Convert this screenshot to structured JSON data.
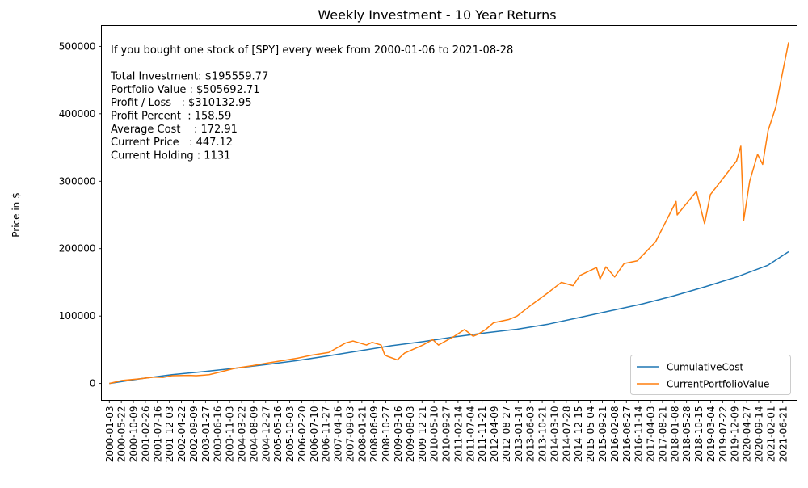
{
  "chart_data": {
    "type": "line",
    "title": "Weekly Investment - 10 Year Returns",
    "xlabel": "",
    "ylabel": "Price in $",
    "ylim": [
      -25000,
      531000
    ],
    "yticks": [
      0,
      100000,
      200000,
      300000,
      400000,
      500000
    ],
    "xlim": [
      "1999-10-03",
      "2021-12-05"
    ],
    "xticks": [
      "2000-01-03",
      "2000-05-22",
      "2000-10-09",
      "2001-02-26",
      "2001-07-16",
      "2001-12-03",
      "2002-04-22",
      "2002-09-09",
      "2003-01-27",
      "2003-06-16",
      "2003-11-03",
      "2004-03-22",
      "2004-08-09",
      "2004-12-27",
      "2005-05-16",
      "2005-10-03",
      "2006-02-20",
      "2006-07-10",
      "2006-11-27",
      "2007-04-16",
      "2007-09-03",
      "2008-01-21",
      "2008-06-09",
      "2008-10-27",
      "2009-03-16",
      "2009-08-03",
      "2009-12-21",
      "2010-05-10",
      "2010-09-27",
      "2011-02-14",
      "2011-07-04",
      "2011-11-21",
      "2012-04-09",
      "2012-08-27",
      "2013-01-14",
      "2013-06-03",
      "2013-10-21",
      "2014-03-10",
      "2014-07-28",
      "2014-12-15",
      "2015-05-04",
      "2015-09-21",
      "2016-02-08",
      "2016-06-27",
      "2016-11-14",
      "2017-04-03",
      "2017-08-21",
      "2018-01-08",
      "2018-05-28",
      "2018-10-15",
      "2019-03-04",
      "2019-07-22",
      "2019-12-09",
      "2020-04-27",
      "2020-09-14",
      "2021-02-01",
      "2021-06-21"
    ],
    "grid": false,
    "legend_position": "bottom-right",
    "annotation": [
      "If you bought one stock of [SPY] every week from 2000-01-06 to 2021-08-28",
      "",
      "Total Investment: $195559.77",
      "Portfolio Value : $505692.71",
      "Profit / Loss   : $310132.95",
      "Profit Percent  : 158.59",
      "Average Cost    : 172.91",
      "Current Price   : 447.12",
      "Current Holding : 1131"
    ],
    "series": [
      {
        "name": "CumulativeCost",
        "color": "#1f77b4",
        "x": [
          "2000-01-03",
          "2001-01-01",
          "2002-01-01",
          "2003-01-01",
          "2004-01-01",
          "2005-01-01",
          "2006-01-01",
          "2007-01-01",
          "2008-01-01",
          "2009-01-01",
          "2010-01-01",
          "2011-01-01",
          "2012-01-01",
          "2013-01-01",
          "2014-01-01",
          "2015-01-01",
          "2016-01-01",
          "2017-01-01",
          "2018-01-01",
          "2019-01-01",
          "2020-01-01",
          "2021-01-01",
          "2021-08-28"
        ],
        "values": [
          0,
          7000,
          13000,
          17500,
          22500,
          28000,
          34000,
          41000,
          48500,
          56000,
          62000,
          69000,
          75000,
          80500,
          88000,
          98000,
          108000,
          118000,
          130000,
          143500,
          158000,
          175500,
          195560
        ]
      },
      {
        "name": "CurrentPortfolioValue",
        "color": "#ff7f0e",
        "x": [
          "2000-01-03",
          "2000-06-01",
          "2001-01-01",
          "2001-06-01",
          "2001-09-20",
          "2002-01-01",
          "2002-07-20",
          "2002-10-10",
          "2003-03-10",
          "2003-07-01",
          "2004-01-01",
          "2004-08-01",
          "2005-01-01",
          "2006-01-01",
          "2006-06-15",
          "2007-01-01",
          "2007-07-15",
          "2007-10-10",
          "2008-03-15",
          "2008-05-20",
          "2008-09-01",
          "2008-10-15",
          "2008-11-20",
          "2009-03-09",
          "2009-06-01",
          "2010-01-01",
          "2010-04-25",
          "2010-07-01",
          "2011-01-01",
          "2011-04-30",
          "2011-08-10",
          "2011-10-05",
          "2012-01-01",
          "2012-04-01",
          "2012-10-01",
          "2013-01-01",
          "2013-06-01",
          "2014-01-01",
          "2014-06-01",
          "2014-10-15",
          "2015-01-01",
          "2015-07-15",
          "2015-08-25",
          "2015-11-01",
          "2016-02-11",
          "2016-06-01",
          "2016-11-01",
          "2017-01-01",
          "2017-06-01",
          "2018-01-26",
          "2018-02-08",
          "2018-09-20",
          "2018-12-24",
          "2019-03-01",
          "2019-07-01",
          "2019-12-31",
          "2020-02-19",
          "2020-03-23",
          "2020-06-01",
          "2020-09-01",
          "2020-10-30",
          "2021-01-01",
          "2021-04-01",
          "2021-06-01",
          "2021-08-28"
        ],
        "values": [
          0,
          4500,
          7000,
          9500,
          9000,
          11500,
          12000,
          11500,
          13000,
          16500,
          22500,
          26500,
          30000,
          37500,
          42000,
          46000,
          60000,
          63000,
          57000,
          61000,
          57000,
          42000,
          40000,
          35000,
          45000,
          57000,
          65000,
          57000,
          70000,
          80000,
          70000,
          73000,
          80000,
          90000,
          95000,
          100000,
          115000,
          135000,
          150000,
          145000,
          160000,
          172000,
          155000,
          173000,
          158000,
          178000,
          182000,
          190000,
          210000,
          270000,
          250000,
          285000,
          237000,
          280000,
          300000,
          330000,
          352000,
          242000,
          300000,
          340000,
          325000,
          375000,
          410000,
          450000,
          506000
        ]
      }
    ]
  }
}
